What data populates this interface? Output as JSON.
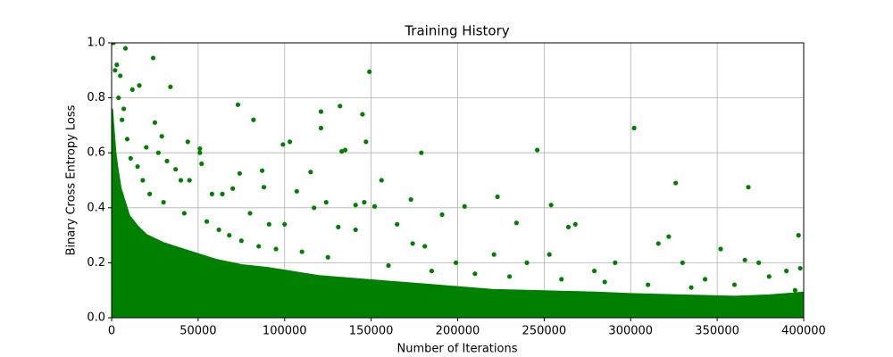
{
  "chart_data": {
    "type": "scatter",
    "title": "Training History",
    "x_label": "Number of Iterations",
    "y_label": "Binary Cross Entropy Loss",
    "xlim": [
      0,
      400000
    ],
    "ylim": [
      0,
      1
    ],
    "xticks": [
      0,
      50000,
      100000,
      150000,
      200000,
      250000,
      300000,
      350000,
      400000
    ],
    "yticks": [
      {
        "value": 0,
        "label": "0.0"
      },
      0.2,
      0.4,
      0.6,
      0.8,
      {
        "value": 1,
        "label": "1.0"
      }
    ],
    "grid": true,
    "series": [
      {
        "type": "area",
        "color": "#008000",
        "x": [
          0,
          1000,
          2000,
          3000,
          5000,
          7500,
          10000,
          15000,
          20000,
          30000,
          40000,
          50000,
          60000,
          75000,
          90000,
          100000,
          120000,
          140000,
          160000,
          180000,
          200000,
          220000,
          250000,
          280000,
          300000,
          330000,
          360000,
          380000,
          400000
        ],
        "y": [
          0.76,
          0.68,
          0.6,
          0.55,
          0.47,
          0.42,
          0.37,
          0.33,
          0.3,
          0.27,
          0.25,
          0.23,
          0.21,
          0.19,
          0.18,
          0.17,
          0.15,
          0.14,
          0.13,
          0.12,
          0.11,
          0.1,
          0.095,
          0.09,
          0.085,
          0.08,
          0.075,
          0.08,
          0.09
        ]
      },
      {
        "type": "scatter",
        "color": "#008000",
        "x": [
          1000,
          8000,
          24000,
          34000,
          16000,
          12000,
          3000,
          5000,
          73000,
          82000,
          121000,
          121000,
          132000,
          145000,
          149000,
          147000,
          103000,
          99000,
          51000,
          51000,
          44000,
          52000,
          29000,
          25000,
          133000,
          135000,
          115000,
          179000,
          156000,
          246000,
          302000,
          326000,
          368000,
          254000,
          223000,
          204000,
          173000,
          191000,
          165000,
          234000,
          268000,
          264000,
          316000,
          322000,
          352000,
          397000,
          374000,
          366000,
          390000,
          380000,
          343000,
          330000,
          291000,
          279000,
          253000,
          240000,
          221000,
          199000,
          181000,
          174000,
          87000,
          74000,
          64000,
          70000,
          58000,
          88000,
          107000,
          117000,
          124000,
          141000,
          146000,
          152000,
          141000,
          131000,
          100000,
          91000,
          80000,
          45000,
          40000,
          37000,
          32000,
          27000,
          20000,
          15000,
          9000,
          6000,
          7000,
          4000,
          2000,
          11000,
          18000,
          22000,
          30000,
          42000,
          55000,
          62000,
          68000,
          75000,
          85000,
          95000,
          110000,
          125000,
          160000,
          185000,
          210000,
          230000,
          260000,
          285000,
          310000,
          335000,
          360000,
          395000,
          398000
        ],
        "y": [
          1.0,
          0.98,
          0.945,
          0.84,
          0.845,
          0.83,
          0.92,
          0.88,
          0.775,
          0.72,
          0.75,
          0.69,
          0.77,
          0.74,
          0.895,
          0.64,
          0.64,
          0.63,
          0.615,
          0.6,
          0.64,
          0.56,
          0.66,
          0.71,
          0.605,
          0.61,
          0.53,
          0.6,
          0.5,
          0.61,
          0.69,
          0.49,
          0.475,
          0.41,
          0.44,
          0.405,
          0.43,
          0.375,
          0.34,
          0.345,
          0.34,
          0.33,
          0.27,
          0.295,
          0.25,
          0.3,
          0.2,
          0.21,
          0.17,
          0.15,
          0.14,
          0.2,
          0.2,
          0.17,
          0.23,
          0.2,
          0.23,
          0.2,
          0.26,
          0.27,
          0.535,
          0.525,
          0.45,
          0.47,
          0.45,
          0.475,
          0.46,
          0.4,
          0.42,
          0.41,
          0.42,
          0.405,
          0.32,
          0.33,
          0.34,
          0.34,
          0.38,
          0.5,
          0.5,
          0.54,
          0.57,
          0.6,
          0.62,
          0.55,
          0.65,
          0.72,
          0.76,
          0.8,
          0.9,
          0.58,
          0.5,
          0.45,
          0.42,
          0.38,
          0.35,
          0.32,
          0.3,
          0.28,
          0.26,
          0.25,
          0.24,
          0.22,
          0.19,
          0.17,
          0.16,
          0.15,
          0.14,
          0.13,
          0.12,
          0.11,
          0.12,
          0.1,
          0.18
        ]
      }
    ]
  }
}
